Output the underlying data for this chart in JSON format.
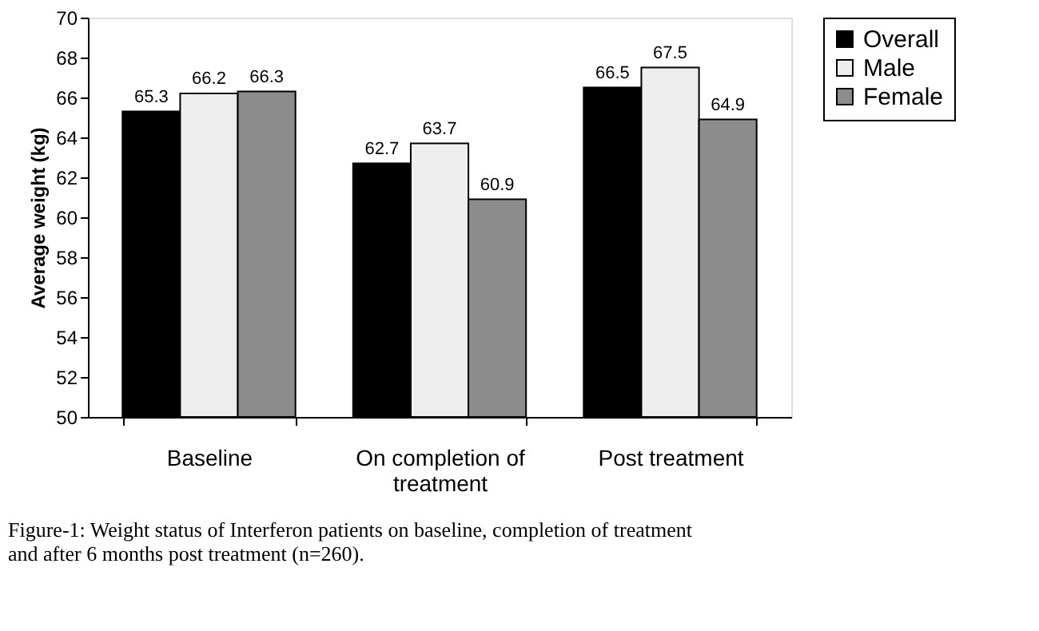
{
  "chart_data": {
    "type": "bar",
    "categories": [
      "Baseline",
      "On completion of treatment",
      "Post treatment"
    ],
    "series": [
      {
        "name": "Overall",
        "color": "#000000",
        "values": [
          65.3,
          62.7,
          66.5
        ]
      },
      {
        "name": "Male",
        "color": "#eeeeee",
        "values": [
          66.2,
          63.7,
          67.5
        ]
      },
      {
        "name": "Female",
        "color": "#8c8c8c",
        "values": [
          66.3,
          60.9,
          64.9
        ]
      }
    ],
    "ylabel": "Average weight (kg)",
    "ylim": [
      50,
      70
    ],
    "yticks": [
      50,
      52,
      54,
      56,
      58,
      60,
      62,
      64,
      66,
      68,
      70
    ],
    "data_labels": true,
    "legend": "right",
    "grid": false,
    "annotations": [
      "Figure-1: Weight status of Interferon patients on baseline, completion of treatment",
      "and after 6 months post treatment (n=260)."
    ]
  }
}
